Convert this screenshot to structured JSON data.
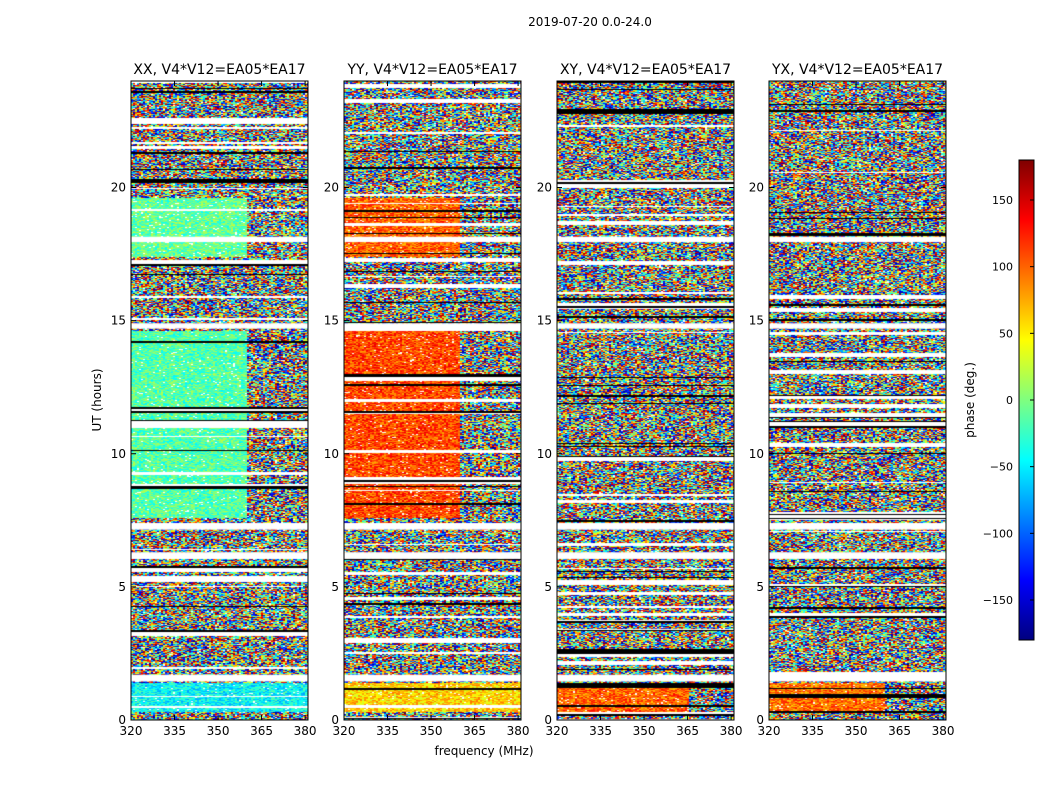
{
  "figure": {
    "suptitle": "2019-07-20 0.0-24.0",
    "xlabel": "frequency (MHz)",
    "ylabel": "UT (hours)",
    "colorbar": {
      "label": "phase (deg.)",
      "range": [
        -180,
        180
      ],
      "ticks": [
        -150,
        -100,
        -50,
        0,
        50,
        100,
        150
      ],
      "tick_labels": [
        "−150",
        "−100",
        "−50",
        "0",
        "50",
        "100",
        "150"
      ],
      "colormap": "jet",
      "colormap_stops": [
        "#00007f",
        "#0000ff",
        "#007fff",
        "#00ffff",
        "#7fff7f",
        "#ffff00",
        "#ff7f00",
        "#ff0000",
        "#7f0000"
      ]
    }
  },
  "chart_data": [
    {
      "type": "heatmap",
      "title": "XX, V4*V12=EA05*EA17",
      "xlim": [
        320,
        381
      ],
      "ylim": [
        0,
        24
      ],
      "xticks": [
        320,
        335,
        350,
        365,
        380
      ],
      "yticks": [
        0,
        5,
        10,
        15,
        20
      ],
      "value": "phase (deg.)",
      "coherent_phase_regions": [
        {
          "ut_range": [
            0.3,
            1.4
          ],
          "freq_range": [
            320,
            381
          ],
          "phase": -45
        },
        {
          "ut_range": [
            7.6,
            14.6
          ],
          "freq_range": [
            320,
            360
          ],
          "phase": -15
        },
        {
          "ut_range": [
            17.4,
            19.6
          ],
          "freq_range": [
            320,
            360
          ],
          "phase": -10
        }
      ]
    },
    {
      "type": "heatmap",
      "title": "YY, V4*V12=EA05*EA17",
      "xlim": [
        320,
        381
      ],
      "ylim": [
        0,
        24
      ],
      "xticks": [
        320,
        335,
        350,
        365,
        380
      ],
      "yticks": [
        0,
        5,
        10,
        15,
        20
      ],
      "value": "phase (deg.)",
      "coherent_phase_regions": [
        {
          "ut_range": [
            0.3,
            1.4
          ],
          "freq_range": [
            320,
            381
          ],
          "phase": 60
        },
        {
          "ut_range": [
            7.6,
            14.6
          ],
          "freq_range": [
            320,
            360
          ],
          "phase": 110
        },
        {
          "ut_range": [
            17.4,
            19.6
          ],
          "freq_range": [
            320,
            360
          ],
          "phase": 100
        }
      ]
    },
    {
      "type": "heatmap",
      "title": "XY, V4*V12=EA05*EA17",
      "xlim": [
        320,
        381
      ],
      "ylim": [
        0,
        24
      ],
      "xticks": [
        320,
        335,
        350,
        365,
        380
      ],
      "yticks": [
        0,
        5,
        10,
        15,
        20
      ],
      "value": "phase (deg.)",
      "coherent_phase_regions": [
        {
          "ut_range": [
            0.3,
            1.4
          ],
          "freq_range": [
            320,
            365
          ],
          "phase": 100
        }
      ]
    },
    {
      "type": "heatmap",
      "title": "YX, V4*V12=EA05*EA17",
      "xlim": [
        320,
        381
      ],
      "ylim": [
        0,
        24
      ],
      "xticks": [
        320,
        335,
        350,
        365,
        380
      ],
      "yticks": [
        0,
        5,
        10,
        15,
        20
      ],
      "value": "phase (deg.)",
      "coherent_phase_regions": [
        {
          "ut_range": [
            0.3,
            1.4
          ],
          "freq_range": [
            320,
            360
          ],
          "phase": 95
        }
      ]
    }
  ]
}
